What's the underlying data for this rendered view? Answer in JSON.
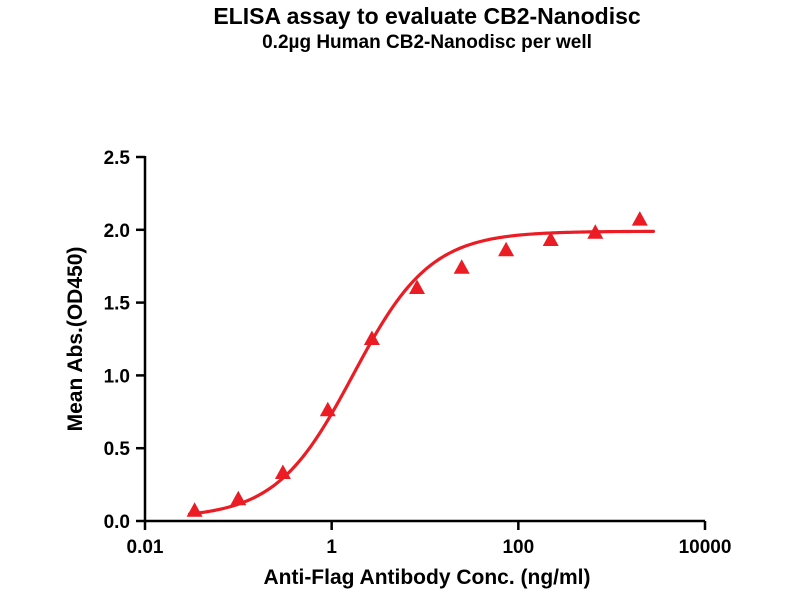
{
  "chart_data": {
    "type": "scatter",
    "title": "ELISA assay to evaluate CB2-Nanodisc",
    "subtitle": "0.2µg Human CB2-Nanodisc per well",
    "xlabel": "Anti-Flag Antibody Conc. (ng/ml)",
    "ylabel": "Mean Abs.(OD450)",
    "x_scale": "log",
    "xlim": [
      0.01,
      10000
    ],
    "ylim": [
      0.0,
      2.5
    ],
    "x_ticks": [
      0.01,
      1,
      100,
      10000
    ],
    "x_tick_labels": [
      "0.01",
      "1",
      "100",
      "10000"
    ],
    "y_ticks": [
      0.0,
      0.5,
      1.0,
      1.5,
      2.0,
      2.5
    ],
    "y_tick_labels": [
      "0.0",
      "0.5",
      "1.0",
      "1.5",
      "2.0",
      "2.5"
    ],
    "grid": false,
    "legend": "none",
    "marker": "filled-triangle-up",
    "marker_color": "#EC1C24",
    "line_color": "#EC1C24",
    "axis_color": "#000000",
    "background_color": "#FFFFFF",
    "series": [
      {
        "x": [
          0.034,
          0.1,
          0.3,
          0.91,
          2.7,
          8.2,
          24.7,
          74,
          222,
          667,
          2000
        ],
        "y": [
          0.07,
          0.15,
          0.33,
          0.76,
          1.25,
          1.6,
          1.74,
          1.86,
          1.93,
          1.98,
          2.07
        ]
      }
    ],
    "fit_curve": {
      "model": "4PL-sigmoid",
      "bottom": 0.02,
      "top": 1.99,
      "ec50": 1.7,
      "hill": 1.05,
      "x_range": [
        0.03,
        2800
      ]
    }
  }
}
